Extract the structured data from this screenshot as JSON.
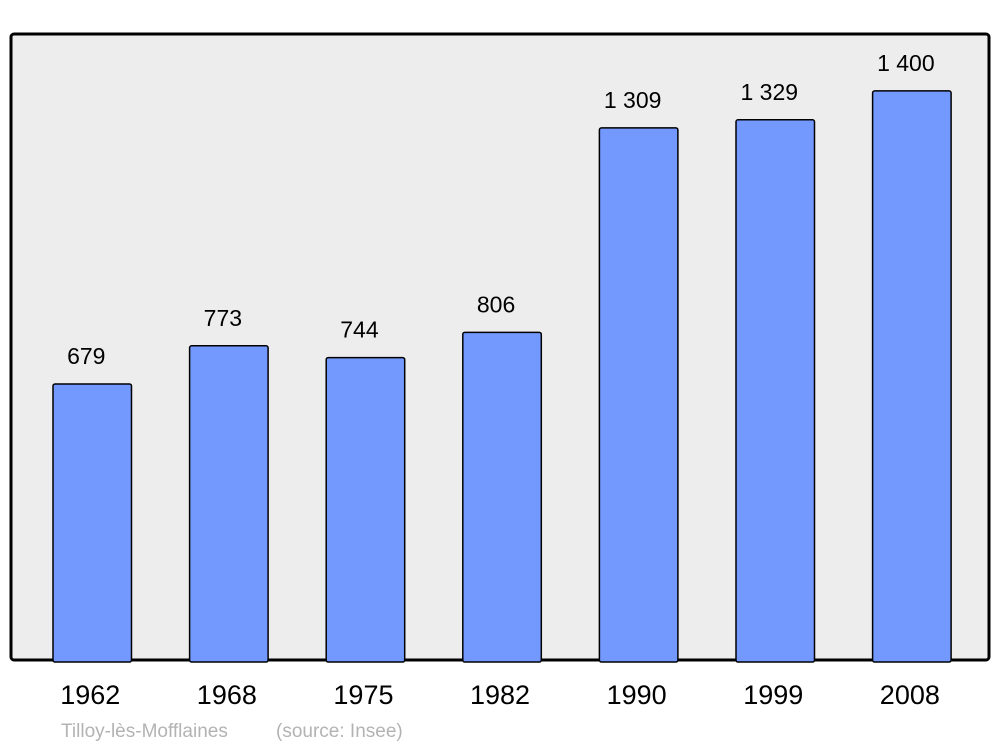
{
  "chart_data": {
    "type": "bar",
    "categories": [
      "1962",
      "1968",
      "1975",
      "1982",
      "1990",
      "1999",
      "2008"
    ],
    "values": [
      679,
      773,
      744,
      806,
      1309,
      1329,
      1400
    ],
    "value_labels": [
      "679",
      "773",
      "744",
      "806",
      "1 309",
      "1 329",
      "1 400"
    ],
    "title": "",
    "xlabel": "",
    "ylabel": "",
    "ylim": [
      0,
      1540
    ],
    "grid": false,
    "colors": {
      "bar": "#7399ff",
      "plot_background": "#ededed",
      "border": "#000000",
      "footer_text": "#b3b3b3"
    }
  },
  "footer": {
    "place": "Tilloy-lès-Mofflaines",
    "source": "(source: Insee)"
  }
}
